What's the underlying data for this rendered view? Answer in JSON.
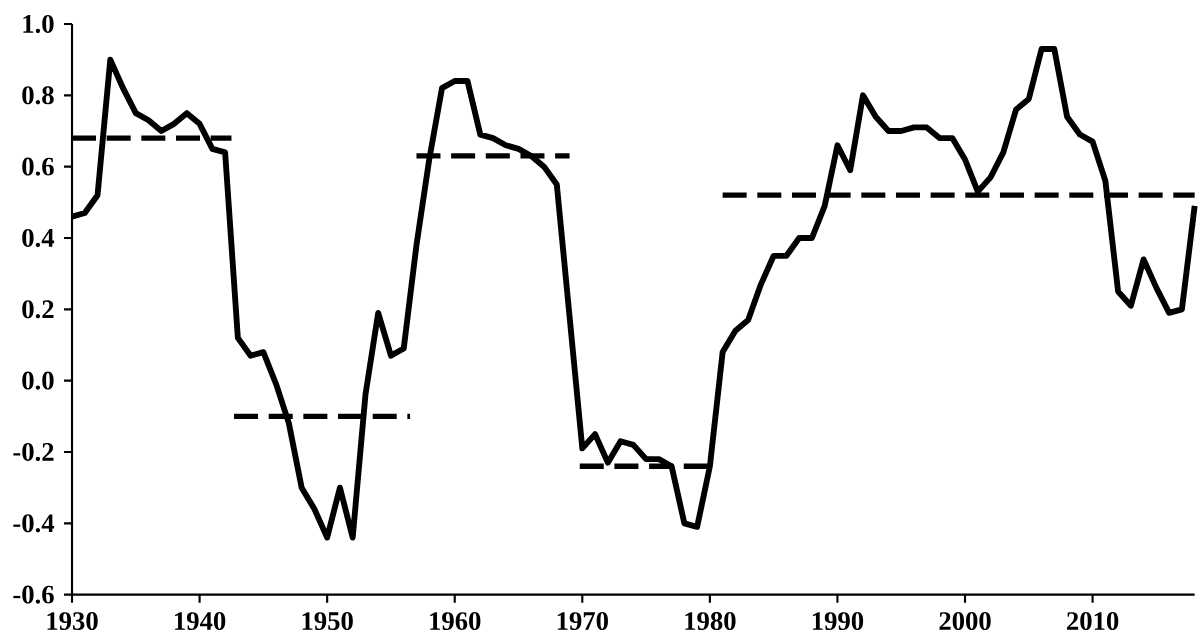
{
  "chart_data": {
    "type": "line",
    "xlim": [
      1930,
      2018
    ],
    "ylim": [
      -0.6,
      1.0
    ],
    "xticks": [
      1930,
      1940,
      1950,
      1960,
      1970,
      1980,
      1990,
      2000,
      2010
    ],
    "yticks": [
      {
        "value": -0.6,
        "label": "-0.6"
      },
      {
        "value": -0.4,
        "label": "-0.4"
      },
      {
        "value": -0.2,
        "label": "-0.2"
      },
      {
        "value": 0,
        "label": "0.0"
      },
      {
        "value": 0.2,
        "label": "0.2"
      },
      {
        "value": 0.4,
        "label": "0.4"
      },
      {
        "value": 0.6,
        "label": "0.6"
      },
      {
        "value": 0.8,
        "label": "0.8"
      },
      {
        "value": 1.0,
        "label": "1.0"
      }
    ],
    "grid": false,
    "marker": "none",
    "series": [
      {
        "color": "#000000",
        "line_style": "solid",
        "x": [
          1930,
          1931,
          1932,
          1933,
          1934,
          1935,
          1936,
          1937,
          1938,
          1939,
          1940,
          1941,
          1942,
          1943,
          1944,
          1945,
          1946,
          1947,
          1948,
          1949,
          1950,
          1951,
          1952,
          1953,
          1954,
          1955,
          1956,
          1957,
          1958,
          1959,
          1960,
          1961,
          1962,
          1963,
          1964,
          1965,
          1966,
          1967,
          1968,
          1969,
          1970,
          1971,
          1972,
          1973,
          1974,
          1975,
          1976,
          1977,
          1978,
          1979,
          1980,
          1981,
          1982,
          1983,
          1984,
          1985,
          1986,
          1987,
          1988,
          1989,
          1990,
          1991,
          1992,
          1993,
          1994,
          1995,
          1996,
          1997,
          1998,
          1999,
          2000,
          2001,
          2002,
          2003,
          2004,
          2005,
          2006,
          2007,
          2008,
          2009,
          2010,
          2011,
          2012,
          2013,
          2014,
          2015,
          2016,
          2017,
          2018
        ],
        "values": [
          0.46,
          0.47,
          0.52,
          0.9,
          0.82,
          0.75,
          0.73,
          0.7,
          0.72,
          0.75,
          0.72,
          0.65,
          0.64,
          0.12,
          0.07,
          0.08,
          -0.01,
          -0.12,
          -0.3,
          -0.36,
          -0.44,
          -0.3,
          -0.44,
          -0.04,
          0.19,
          0.07,
          0.09,
          0.38,
          0.62,
          0.82,
          0.84,
          0.84,
          0.69,
          0.68,
          0.66,
          0.65,
          0.63,
          0.6,
          0.55,
          0.18,
          -0.19,
          -0.15,
          -0.23,
          -0.17,
          -0.18,
          -0.22,
          -0.22,
          -0.24,
          -0.4,
          -0.41,
          -0.24,
          0.08,
          0.14,
          0.17,
          0.27,
          0.35,
          0.35,
          0.4,
          0.4,
          0.49,
          0.66,
          0.59,
          0.8,
          0.74,
          0.7,
          0.7,
          0.71,
          0.71,
          0.68,
          0.68,
          0.62,
          0.53,
          0.57,
          0.64,
          0.76,
          0.79,
          0.93,
          0.93,
          0.74,
          0.69,
          0.67,
          0.56,
          0.25,
          0.21,
          0.34,
          0.26,
          0.19,
          0.2,
          0.49
        ]
      },
      {
        "color": "#000000",
        "line_style": "dashed",
        "x": [
          1930,
          1942.5
        ],
        "values": [
          0.68,
          0.68
        ]
      },
      {
        "color": "#000000",
        "line_style": "dashed",
        "x": [
          1942.7,
          1956.5
        ],
        "values": [
          -0.1,
          -0.1
        ]
      },
      {
        "color": "#000000",
        "line_style": "dashed",
        "x": [
          1957,
          1969
        ],
        "values": [
          0.63,
          0.63
        ]
      },
      {
        "color": "#000000",
        "line_style": "dashed",
        "x": [
          1969.8,
          1980.2
        ],
        "values": [
          -0.24,
          -0.24
        ]
      },
      {
        "color": "#000000",
        "line_style": "dashed",
        "x": [
          1981,
          2018
        ],
        "values": [
          0.52,
          0.52
        ]
      }
    ]
  }
}
